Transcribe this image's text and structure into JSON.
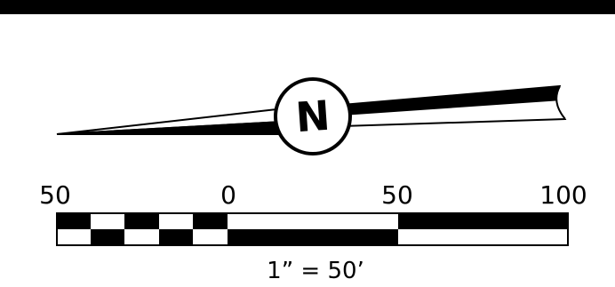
{
  "colors": {
    "ink": "#000000",
    "paper": "#ffffff"
  },
  "north_arrow": {
    "icon": "north-arrow-icon",
    "letter": "N"
  },
  "scale_bar": {
    "tick_labels": [
      "50",
      "0",
      "50",
      "100"
    ],
    "ratio_label": "1”  =  50’"
  }
}
